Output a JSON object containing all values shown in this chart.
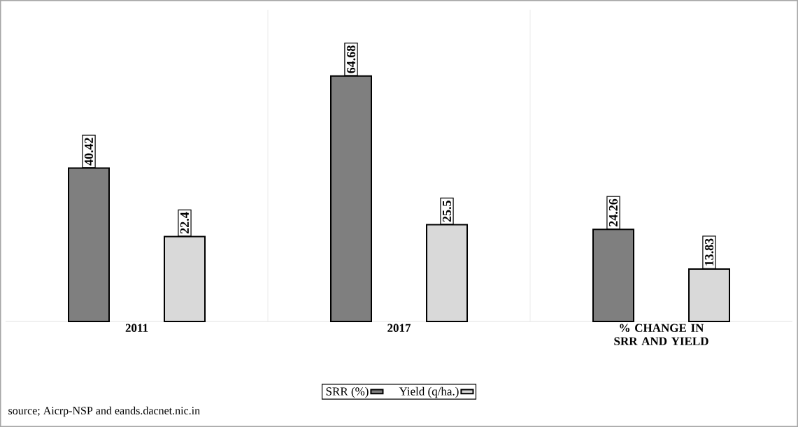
{
  "chart_data": {
    "type": "bar",
    "categories": [
      "2011",
      "2017",
      "% CHANGE IN SRR AND YIELD"
    ],
    "series": [
      {
        "name": "SRR (%)",
        "color": "#7f7f7f",
        "values": [
          40.42,
          64.68,
          24.26
        ]
      },
      {
        "name": "Yield (q/ha.)",
        "color": "#d9d9d9",
        "values": [
          22.4,
          25.5,
          13.83
        ]
      }
    ],
    "data_labels": true,
    "legend": "bottom",
    "annotations": [
      "source; Aicrp-NSP and eands.dacnet.nic.in"
    ]
  }
}
